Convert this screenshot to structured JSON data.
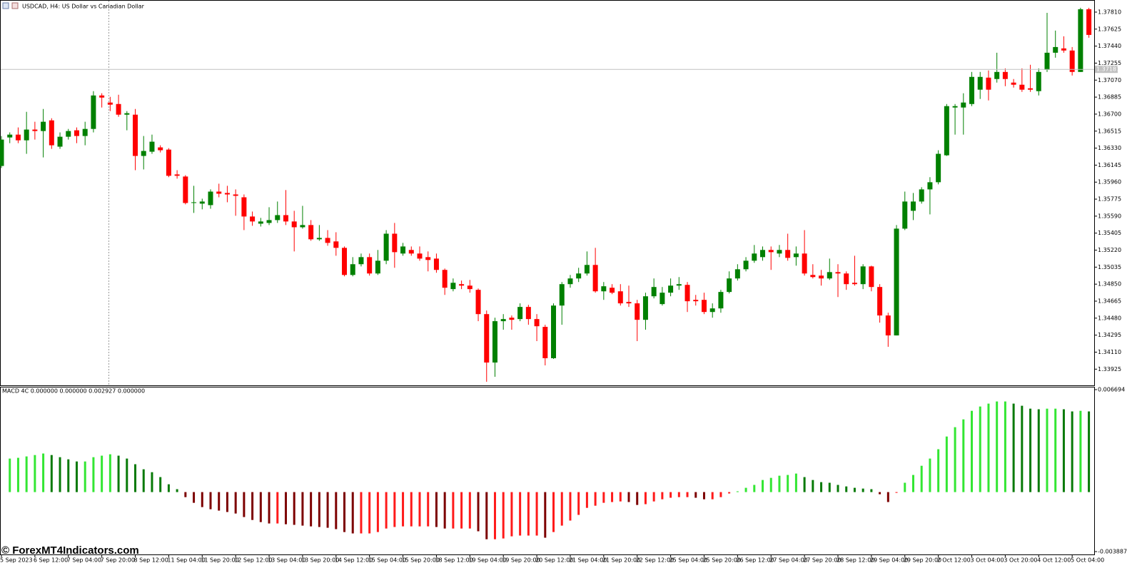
{
  "chart_data": [
    {
      "type": "candlestick",
      "title": "USDCAD, H4:  US Dollar vs Canadian Dollar",
      "categories": [
        "5 Sep 2023",
        null,
        null,
        null,
        "6 Sep 12:00",
        null,
        null,
        null,
        "7 Sep 04:00",
        null,
        null,
        null,
        "7 Sep 20:00",
        null,
        null,
        null,
        "8 Sep 12:00",
        null,
        null,
        null,
        "11 Sep 04:00",
        null,
        null,
        null,
        "11 Sep 20:00",
        null,
        null,
        null,
        "12 Sep 12:00",
        null,
        null,
        null,
        "13 Sep 04:00",
        null,
        null,
        null,
        "13 Sep 20:00",
        null,
        null,
        null,
        "14 Sep 12:00",
        null,
        null,
        null,
        "15 Sep 04:00",
        null,
        null,
        null,
        "15 Sep 20:00",
        null,
        null,
        null,
        "18 Sep 12:00",
        null,
        null,
        null,
        "19 Sep 04:00",
        null,
        null,
        null,
        "19 Sep 20:00",
        null,
        null,
        null,
        "20 Sep 12:00",
        null,
        null,
        null,
        "21 Sep 04:00",
        null,
        null,
        null,
        "21 Sep 20:00",
        null,
        null,
        null,
        "22 Sep 12:00",
        null,
        null,
        null,
        "25 Sep 04:00",
        null,
        null,
        null,
        "25 Sep 20:00",
        null,
        null,
        null,
        "26 Sep 12:00",
        null,
        null,
        null,
        "27 Sep 04:00",
        null,
        null,
        null,
        "27 Sep 20:00",
        null,
        null,
        null,
        "28 Sep 12:00",
        null,
        null,
        null,
        "29 Sep 04:00",
        null,
        null,
        null,
        "29 Sep 20:00",
        null,
        null,
        null,
        "2 Oct 12:00",
        null,
        null,
        null,
        "3 Oct 04:00",
        null,
        null,
        null,
        "3 Oct 20:00",
        null,
        null,
        null,
        "4 Oct 12:00",
        null,
        null,
        null,
        "5 Oct 04:00",
        null,
        null
      ],
      "open": [
        1.36136,
        1.36446,
        1.36477,
        1.36415,
        1.36532,
        1.36516,
        1.36632,
        1.36346,
        1.36454,
        1.36524,
        1.36462,
        1.36539,
        1.36903,
        1.36826,
        1.3681,
        1.36694,
        1.36694,
        1.36245,
        1.36291,
        1.36338,
        1.36314,
        1.36044,
        1.36021,
        1.35733,
        1.35726,
        1.3571,
        1.35857,
        1.35842,
        1.35826,
        1.35795,
        1.35586,
        1.35508,
        1.35516,
        1.35547,
        1.35601,
        1.35532,
        1.35469,
        1.35493,
        1.35338,
        1.35353,
        1.35315,
        1.35245,
        1.3495,
        1.35067,
        1.35144,
        1.34966,
        1.35105,
        1.35399,
        1.35183,
        1.35222,
        1.35183,
        1.35144,
        1.35128,
        1.35005,
        1.34796,
        1.3485,
        1.34834,
        1.34788,
        1.34524,
        1.33997,
        1.34447,
        1.34485,
        1.3447,
        1.34602,
        1.3447,
        1.34385,
        1.34044,
        1.34617,
        1.3485,
        1.34912,
        1.34966,
        1.35059,
        1.34772,
        1.34811,
        1.34772,
        1.34656,
        1.34641,
        1.34462,
        1.34718,
        1.34633,
        1.34757,
        1.34834,
        1.34842,
        1.34679,
        1.34679,
        1.34547,
        1.34586,
        1.34765,
        1.34912,
        1.35012,
        1.35105,
        1.35144,
        1.35222,
        1.35183,
        1.35222,
        1.35144,
        1.35183,
        1.3495,
        1.34943,
        1.34912,
        1.34981,
        1.34966,
        1.34865,
        1.3485,
        1.35043,
        1.34819,
        1.34509,
        1.34292,
        1.35454,
        1.35648,
        1.35749,
        1.35881,
        1.35959,
        1.36252,
        1.36772,
        1.36772,
        1.3681,
        1.36966,
        1.37097,
        1.37082,
        1.37159,
        1.37043,
        1.3702,
        1.36981,
        1.3695,
        1.37182,
        1.37368,
        1.37415,
        1.37392,
        1.37159,
        1.37841
      ],
      "high": [
        1.36462,
        1.36501,
        1.36555,
        1.36725,
        1.36617,
        1.36756,
        1.36655,
        1.36501,
        1.36539,
        1.36555,
        1.36617,
        1.3695,
        1.36927,
        1.36888,
        1.36911,
        1.36733,
        1.36756,
        1.36462,
        1.36477,
        1.36361,
        1.3633,
        1.3609,
        1.36036,
        1.3592,
        1.3578,
        1.35881,
        1.35943,
        1.3592,
        1.35881,
        1.35826,
        1.3564,
        1.35571,
        1.35687,
        1.35749,
        1.35874,
        1.35648,
        1.35702,
        1.35547,
        1.35493,
        1.35438,
        1.35415,
        1.3526,
        1.35144,
        1.35183,
        1.35183,
        1.35222,
        1.35438,
        1.35516,
        1.35299,
        1.3526,
        1.3526,
        1.35206,
        1.35183,
        1.3502,
        1.34912,
        1.34889,
        1.34896,
        1.34803,
        1.34563,
        1.34485,
        1.34524,
        1.34509,
        1.34641,
        1.34625,
        1.34524,
        1.34408,
        1.34641,
        1.34873,
        1.3495,
        1.35028,
        1.35206,
        1.35245,
        1.34873,
        1.3485,
        1.3485,
        1.34834,
        1.34679,
        1.34757,
        1.34912,
        1.34819,
        1.34912,
        1.34927,
        1.34873,
        1.34733,
        1.34757,
        1.34641,
        1.34788,
        1.34989,
        1.35067,
        1.35144,
        1.35276,
        1.3526,
        1.3526,
        1.35276,
        1.35399,
        1.3526,
        1.35438,
        1.35067,
        1.35005,
        1.35128,
        1.35067,
        1.34989,
        1.35159,
        1.35067,
        1.35051,
        1.3485,
        1.34539,
        1.35493,
        1.35857,
        1.35842,
        1.35905,
        1.36014,
        1.36307,
        1.3681,
        1.3681,
        1.36927,
        1.37159,
        1.37159,
        1.37175,
        1.37368,
        1.37198,
        1.37082,
        1.37198,
        1.37237,
        1.37198,
        1.37802,
        1.37609,
        1.37547,
        1.3743,
        1.37857,
        1.37857
      ],
      "low": [
        1.36113,
        1.36384,
        1.36384,
        1.36268,
        1.36423,
        1.36229,
        1.36322,
        1.36322,
        1.36423,
        1.36384,
        1.36361,
        1.36501,
        1.36772,
        1.36733,
        1.36671,
        1.36524,
        1.3609,
        1.36098,
        1.36268,
        1.36283,
        1.36014,
        1.35998,
        1.35718,
        1.35625,
        1.35664,
        1.35671,
        1.35795,
        1.35741,
        1.35594,
        1.35438,
        1.35485,
        1.35477,
        1.35493,
        1.35516,
        1.35493,
        1.35206,
        1.35454,
        1.35322,
        1.35322,
        1.35268,
        1.35159,
        1.34935,
        1.34935,
        1.35043,
        1.34943,
        1.3495,
        1.35067,
        1.35028,
        1.35159,
        1.35159,
        1.35105,
        1.34989,
        1.34974,
        1.34733,
        1.34772,
        1.34796,
        1.34757,
        1.34447,
        1.33788,
        1.33842,
        1.34354,
        1.34354,
        1.34447,
        1.34408,
        1.3423,
        1.33966,
        1.34036,
        1.34408,
        1.34811,
        1.34873,
        1.34943,
        1.34757,
        1.34679,
        1.34741,
        1.34617,
        1.34602,
        1.3423,
        1.34354,
        1.34695,
        1.34617,
        1.34718,
        1.34788,
        1.34547,
        1.34617,
        1.34524,
        1.34485,
        1.34539,
        1.34749,
        1.34889,
        1.34989,
        1.35082,
        1.35105,
        1.35005,
        1.35144,
        1.35105,
        1.35051,
        1.34943,
        1.34912,
        1.34834,
        1.34896,
        1.3471,
        1.34788,
        1.34834,
        1.34796,
        1.34772,
        1.34431,
        1.34168,
        1.34292,
        1.35438,
        1.35547,
        1.35726,
        1.35609,
        1.35936,
        1.36245,
        1.36477,
        1.36477,
        1.36787,
        1.36865,
        1.36849,
        1.37043,
        1.37004,
        1.36989,
        1.36942,
        1.36942,
        1.36903,
        1.37159,
        1.37314,
        1.37368,
        1.3712,
        1.37159,
        1.37531
      ],
      "close": [
        1.36423,
        1.36477,
        1.36415,
        1.36532,
        1.36516,
        1.36617,
        1.36361,
        1.36454,
        1.36516,
        1.36462,
        1.36539,
        1.36903,
        1.3688,
        1.36803,
        1.36694,
        1.3671,
        1.36245,
        1.36299,
        1.364,
        1.36307,
        1.36029,
        1.36029,
        1.35733,
        1.35741,
        1.35749,
        1.35857,
        1.35834,
        1.35826,
        1.35811,
        1.35586,
        1.35532,
        1.35532,
        1.35547,
        1.35601,
        1.35532,
        1.35469,
        1.35493,
        1.35338,
        1.35353,
        1.35299,
        1.35245,
        1.3495,
        1.35067,
        1.35144,
        1.34966,
        1.35105,
        1.35399,
        1.35198,
        1.3526,
        1.35183,
        1.35128,
        1.35113,
        1.35005,
        1.34811,
        1.34865,
        1.34834,
        1.34796,
        1.34524,
        1.33997,
        1.34447,
        1.3447,
        1.34462,
        1.34602,
        1.3447,
        1.34392,
        1.34044,
        1.34617,
        1.3485,
        1.34912,
        1.34966,
        1.35059,
        1.34772,
        1.34827,
        1.34757,
        1.34641,
        1.34641,
        1.34462,
        1.34718,
        1.34819,
        1.34757,
        1.34834,
        1.3485,
        1.34664,
        1.34664,
        1.34547,
        1.34586,
        1.34765,
        1.34912,
        1.35012,
        1.35105,
        1.35183,
        1.35222,
        1.35198,
        1.35222,
        1.35136,
        1.35183,
        1.34966,
        1.34927,
        1.34912,
        1.34981,
        1.34966,
        1.3485,
        1.3485,
        1.35043,
        1.34819,
        1.34509,
        1.34292,
        1.35454,
        1.35749,
        1.35749,
        1.35881,
        1.35959,
        1.36268,
        1.36787,
        1.36787,
        1.36826,
        1.37105,
        1.37105,
        1.36966,
        1.37159,
        1.37082,
        1.3702,
        1.36966,
        1.36966,
        1.37159,
        1.37368,
        1.3743,
        1.37392,
        1.37159,
        1.37841,
        1.37562
      ],
      "up_color": "#008000",
      "down_color": "#ff0000",
      "ylim": [
        1.33749,
        1.37934
      ],
      "yticks": [
        {
          "value": 1.3781,
          "label": "1.37810"
        },
        {
          "value": 1.37625,
          "label": "1.37625"
        },
        {
          "value": 1.3744,
          "label": "1.37440"
        },
        {
          "value": 1.37255,
          "label": "1.37255"
        },
        {
          "value": 1.3707,
          "label": "1.37070"
        },
        {
          "value": 1.36885,
          "label": "1.36885"
        },
        {
          "value": 1.367,
          "label": "1.36700"
        },
        {
          "value": 1.36515,
          "label": "1.36515"
        },
        {
          "value": 1.3633,
          "label": "1.36330"
        },
        {
          "value": 1.36145,
          "label": "1.36145"
        },
        {
          "value": 1.3596,
          "label": "1.35960"
        },
        {
          "value": 1.35775,
          "label": "1.35775"
        },
        {
          "value": 1.3559,
          "label": "1.35590"
        },
        {
          "value": 1.35405,
          "label": "1.35405"
        },
        {
          "value": 1.3522,
          "label": "1.35220"
        },
        {
          "value": 1.35035,
          "label": "1.35035"
        },
        {
          "value": 1.3485,
          "label": "1.34850"
        },
        {
          "value": 1.34665,
          "label": "1.34665"
        },
        {
          "value": 1.3448,
          "label": "1.34480"
        },
        {
          "value": 1.34295,
          "label": "1.34295"
        },
        {
          "value": 1.3411,
          "label": "1.34110"
        },
        {
          "value": 1.33925,
          "label": "1.33925"
        }
      ],
      "current_price": 1.37187
    },
    {
      "type": "bar",
      "title": "MACD 4C 0.000000 0.000000 0.002927 0.000000",
      "values": [
        null,
        0.00219,
        0.00224,
        0.00233,
        0.00242,
        0.00252,
        0.00242,
        0.00228,
        0.00214,
        0.002,
        0.002,
        0.00228,
        0.00238,
        0.00247,
        0.00238,
        0.00219,
        0.00182,
        0.00149,
        0.0013,
        0.00098,
        0.00051,
        0.00019,
        -0.00033,
        -0.0007,
        -0.00098,
        -0.00112,
        -0.00121,
        -0.0013,
        -0.0014,
        -0.00163,
        -0.00182,
        -0.00196,
        -0.00205,
        -0.00205,
        -0.0021,
        -0.00214,
        -0.00219,
        -0.00224,
        -0.00228,
        -0.00233,
        -0.00242,
        -0.00261,
        -0.0027,
        -0.0027,
        -0.0027,
        -0.00261,
        -0.00238,
        -0.00228,
        -0.00224,
        -0.00224,
        -0.00224,
        -0.00224,
        -0.00228,
        -0.00238,
        -0.00238,
        -0.00238,
        -0.00238,
        -0.00256,
        -0.00308,
        -0.00308,
        -0.00303,
        -0.00289,
        -0.00284,
        -0.00284,
        -0.00284,
        -0.00298,
        -0.00261,
        -0.00219,
        -0.00186,
        -0.00149,
        -0.00103,
        -0.00089,
        -0.0007,
        -0.00065,
        -0.00061,
        -0.00065,
        -0.00084,
        -0.00079,
        -0.00061,
        -0.00047,
        -0.00037,
        -0.00033,
        -0.00033,
        -0.00037,
        -0.00047,
        -0.00047,
        -0.00033,
        -9e-05,
        5e-05,
        0.00028,
        0.00047,
        0.00079,
        0.00093,
        0.00107,
        0.00112,
        0.00121,
        0.00098,
        0.00079,
        0.00065,
        0.00061,
        0.00047,
        0.00037,
        0.00028,
        0.00023,
        0.00019,
        -0.00014,
        -0.00065,
        -5e-05,
        0.00061,
        0.00112,
        0.00172,
        0.00219,
        0.0028,
        0.00363,
        0.00424,
        0.00475,
        0.00531,
        0.00559,
        0.00578,
        0.00592,
        0.00592,
        0.00578,
        0.00564,
        0.00545,
        0.00541,
        0.00545,
        0.00545,
        0.00541,
        0.00527,
        0.00531,
        0.00527
      ],
      "palette": {
        "positive_rising": "#33e633",
        "positive_falling": "#077a07",
        "negative_falling": "#7d0000",
        "negative_rising": "#ff1a1a"
      },
      "ylim": [
        -0.003887,
        0.006694
      ],
      "yticks": [
        0.006694,
        -0.003887
      ]
    }
  ],
  "watermark": "© ForexMT4Indicators.com"
}
